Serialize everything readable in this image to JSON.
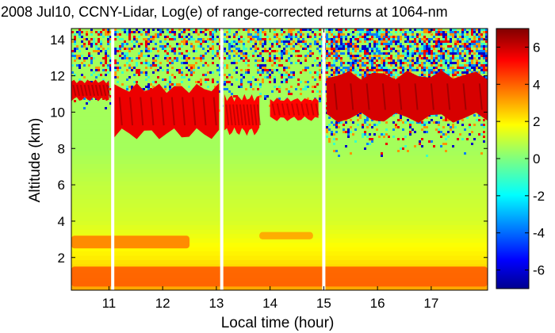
{
  "chart_data": {
    "type": "heatmap",
    "title": "2008 Jul10, CCNY-Lidar, Log(e) of range-corrected returns at 1064-nm",
    "xlabel": "Local time (hour)",
    "ylabel": "Altitude (km)",
    "xlim": [
      10.3,
      18.05
    ],
    "ylim": [
      0.2,
      14.6
    ],
    "x_ticks": [
      11,
      12,
      13,
      14,
      15,
      16,
      17
    ],
    "x_tick_labels": [
      "11",
      "12",
      "13",
      "14",
      "15",
      "16",
      "17"
    ],
    "y_ticks": [
      2,
      4,
      6,
      8,
      10,
      12,
      14
    ],
    "y_tick_labels": [
      "2",
      "4",
      "6",
      "8",
      "10",
      "12",
      "14"
    ],
    "colorbar": {
      "range": [
        -7,
        7
      ],
      "ticks": [
        -6,
        -4,
        -2,
        0,
        2,
        4,
        6
      ],
      "tick_labels": [
        "-6",
        "-4",
        "-2",
        "0",
        "2",
        "4",
        "6"
      ],
      "colormap": "jet"
    },
    "data_gaps_hours": [
      11.07,
      13.1,
      15.0
    ],
    "features": [
      {
        "kind": "aerosol-layer",
        "x_range": [
          10.3,
          18.05
        ],
        "altitude_km": [
          0.4,
          1.5
        ],
        "log_value": 4.0
      },
      {
        "kind": "aerosol-layer",
        "x_range": [
          10.3,
          12.5
        ],
        "altitude_km": [
          2.5,
          3.2
        ],
        "log_value": 3.5
      },
      {
        "kind": "aerosol-layer",
        "x_range": [
          13.8,
          14.8
        ],
        "altitude_km": [
          3.0,
          3.4
        ],
        "log_value": 3.0
      },
      {
        "kind": "cirrus-cloud",
        "x_range": [
          10.3,
          11.0
        ],
        "altitude_km": [
          10.6,
          11.8
        ],
        "log_value": 5.5
      },
      {
        "kind": "cirrus-cloud",
        "x_range": [
          11.1,
          13.05
        ],
        "altitude_km": [
          8.5,
          11.6
        ],
        "log_value": 5.5
      },
      {
        "kind": "cirrus-cloud",
        "x_range": [
          13.15,
          13.8
        ],
        "altitude_km": [
          8.7,
          11.0
        ],
        "log_value": 5.2
      },
      {
        "kind": "cirrus-cloud",
        "x_range": [
          14.0,
          14.9
        ],
        "altitude_km": [
          9.5,
          10.8
        ],
        "log_value": 5.2
      },
      {
        "kind": "cirrus-cloud",
        "x_range": [
          15.05,
          18.05
        ],
        "altitude_km": [
          9.4,
          12.3
        ],
        "log_value": 5.8
      }
    ],
    "background_log_value_profile": [
      {
        "altitude_km": 0.2,
        "log_value": 3.0
      },
      {
        "altitude_km": 2.0,
        "log_value": 2.0
      },
      {
        "altitude_km": 4.0,
        "log_value": 1.2
      },
      {
        "altitude_km": 6.0,
        "log_value": 0.9
      },
      {
        "altitude_km": 8.0,
        "log_value": 0.5
      },
      {
        "altitude_km": 10.0,
        "log_value": 0.5
      },
      {
        "altitude_km": 14.6,
        "log_value": 0.5
      }
    ]
  }
}
